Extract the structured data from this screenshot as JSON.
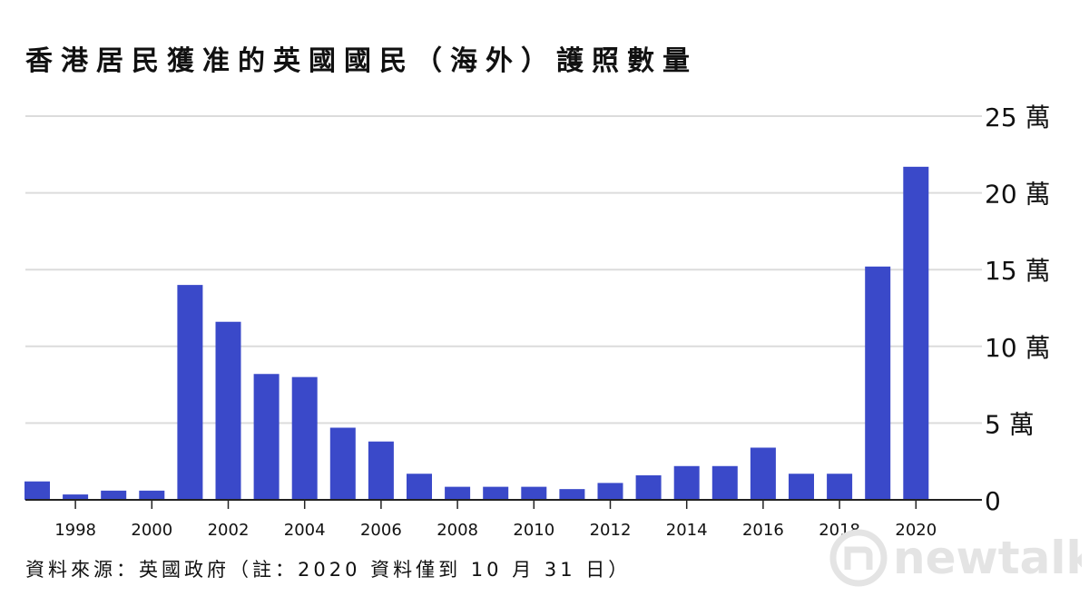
{
  "chart_data": {
    "type": "bar",
    "title": "香港居民獲准的英國國民（海外）護照數量",
    "source_note": "資料來源：英國政府（註：2020 資料僅到 10 月 31 日）",
    "categories": [
      "1997",
      "1998",
      "1999",
      "2000",
      "2001",
      "2002",
      "2003",
      "2004",
      "2005",
      "2006",
      "2007",
      "2008",
      "2009",
      "2010",
      "2011",
      "2012",
      "2013",
      "2014",
      "2015",
      "2016",
      "2017",
      "2018",
      "2019",
      "2020"
    ],
    "values": [
      12000,
      3500,
      6000,
      6000,
      140000,
      116000,
      82000,
      80000,
      47000,
      38000,
      17000,
      8500,
      8500,
      8500,
      7000,
      11000,
      16000,
      22000,
      22000,
      34000,
      17000,
      17000,
      152000,
      217000
    ],
    "x_tick_labels": [
      "1998",
      "2000",
      "2002",
      "2004",
      "2006",
      "2008",
      "2010",
      "2012",
      "2014",
      "2016",
      "2018",
      "2020"
    ],
    "y_ticks": [
      {
        "value": 0,
        "label": "0"
      },
      {
        "value": 50000,
        "label": "5 萬"
      },
      {
        "value": 100000,
        "label": "10 萬"
      },
      {
        "value": 150000,
        "label": "15 萬"
      },
      {
        "value": 200000,
        "label": "20 萬"
      },
      {
        "value": 250000,
        "label": "25 萬"
      }
    ],
    "ylim": [
      0,
      250000
    ],
    "grid": true,
    "y_axis_side": "right",
    "bar_color": "#3a49c9",
    "grid_color": "#dcdcdc"
  },
  "watermark": {
    "text": "newtalk",
    "icon": "newtalk-logo-icon",
    "color": "#e4e4e4"
  }
}
